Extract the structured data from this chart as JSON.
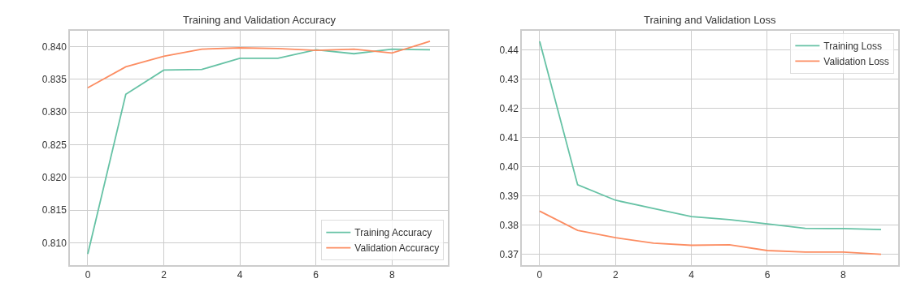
{
  "chart_data": [
    {
      "type": "line",
      "title": "Training and Validation Accuracy",
      "x": [
        0,
        1,
        2,
        3,
        4,
        5,
        6,
        7,
        8,
        9
      ],
      "series": [
        {
          "name": "Training Accuracy",
          "color": "#66c2a5",
          "values": [
            0.8083,
            0.8327,
            0.8364,
            0.8365,
            0.8382,
            0.8382,
            0.8395,
            0.8389,
            0.8396,
            0.8395
          ]
        },
        {
          "name": "Validation Accuracy",
          "color": "#fc8d62",
          "values": [
            0.8337,
            0.8369,
            0.8385,
            0.8396,
            0.8398,
            0.8397,
            0.8394,
            0.8396,
            0.839,
            0.8408
          ]
        }
      ],
      "xlim": [
        -0.47,
        9.47
      ],
      "xticks": [
        0,
        2,
        4,
        6,
        8
      ],
      "ylim": [
        0.8066,
        0.8424
      ],
      "yticks": [
        {
          "value": 0.81,
          "label": "0.810"
        },
        {
          "value": 0.815,
          "label": "0.815"
        },
        {
          "value": 0.82,
          "label": "0.820"
        },
        {
          "value": 0.825,
          "label": "0.825"
        },
        {
          "value": 0.83,
          "label": "0.830"
        },
        {
          "value": 0.835,
          "label": "0.835"
        },
        {
          "value": 0.84,
          "label": "0.840"
        }
      ],
      "grid": true,
      "legend": "bottom right",
      "marker": "none",
      "line_style": "solid"
    },
    {
      "type": "line",
      "title": "Training and Validation Loss",
      "x": [
        0,
        1,
        2,
        3,
        4,
        5,
        6,
        7,
        8,
        9
      ],
      "series": [
        {
          "name": "Training Loss",
          "color": "#66c2a5",
          "values": [
            0.4429,
            0.3938,
            0.3885,
            0.3857,
            0.3829,
            0.3819,
            0.3804,
            0.3789,
            0.3788,
            0.3785
          ]
        },
        {
          "name": "Validation Loss",
          "color": "#fc8d62",
          "values": [
            0.3848,
            0.3782,
            0.3757,
            0.3738,
            0.3731,
            0.3733,
            0.3713,
            0.3708,
            0.3708,
            0.37
          ]
        }
      ],
      "xlim": [
        -0.47,
        9.45
      ],
      "xticks": [
        0,
        2,
        4,
        6,
        8
      ],
      "ylim": [
        0.3663,
        0.4465
      ],
      "yticks": [
        0.37,
        0.38,
        0.39,
        {
          "value": 0.4,
          "label": "0.40"
        },
        0.41,
        0.42,
        0.43,
        0.44
      ],
      "grid": true,
      "legend": "top right",
      "marker": "none",
      "line_style": "solid"
    }
  ]
}
